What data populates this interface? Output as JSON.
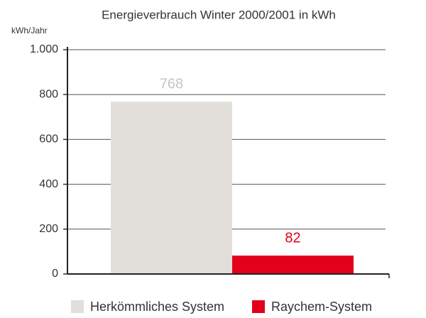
{
  "chart_data": {
    "type": "bar",
    "title": "Energieverbrauch Winter 2000/2001 in kWh",
    "y_label": "kWh/Jahr",
    "categories": [
      null
    ],
    "series": [
      {
        "name": "Herkömmliches System",
        "color": "#e2dfda",
        "values": [
          768
        ]
      },
      {
        "name": "Raychem-System",
        "color": "#e3001b",
        "values": [
          82
        ]
      }
    ],
    "ylim": [
      0,
      1000
    ],
    "yticks": [
      0,
      200,
      400,
      600,
      800,
      {
        "value": 1000,
        "label": "1.000"
      }
    ],
    "grid": true,
    "legend": "bottom"
  }
}
